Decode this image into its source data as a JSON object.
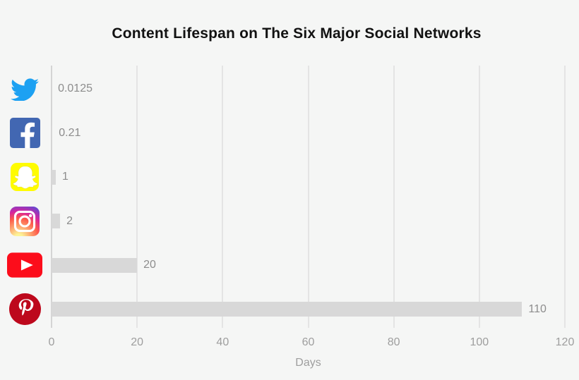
{
  "title": "Content Lifespan on The Six Major Social Networks",
  "chart_data": {
    "type": "bar",
    "orientation": "horizontal",
    "title": "Content Lifespan on The Six Major Social Networks",
    "categories": [
      "Twitter",
      "Facebook",
      "Snapchat",
      "Instagram",
      "YouTube",
      "Pinterest"
    ],
    "values": [
      0.0125,
      0.21,
      1,
      2,
      20,
      110
    ],
    "value_labels": [
      "0.0125",
      "0.21",
      "1",
      "2",
      "20",
      "110"
    ],
    "icons": [
      "twitter-icon",
      "facebook-icon",
      "snapchat-icon",
      "instagram-icon",
      "youtube-icon",
      "pinterest-icon"
    ],
    "xlabel": "Days",
    "xticks": [
      0,
      20,
      40,
      60,
      80,
      100,
      120
    ],
    "xlim": [
      0,
      120
    ],
    "grid": true,
    "legend": false
  },
  "colors": {
    "background": "#f5f6f5",
    "bar": "#d8d8d8",
    "gridline": "#e4e4e4",
    "axis_line": "#d4d4d4",
    "value_text": "#8d8d8d",
    "tick_text": "#9e9e9e",
    "title_text": "#121212",
    "twitter_blue": "#1da1f2",
    "facebook_blue": "#4267b2",
    "snapchat_yellow": "#fffc00",
    "youtube_red": "#fc0d1b",
    "pinterest_red": "#bd081c",
    "instagram_gradient": [
      "#fdf497",
      "#fd5949",
      "#d6249f",
      "#285aeb"
    ]
  }
}
